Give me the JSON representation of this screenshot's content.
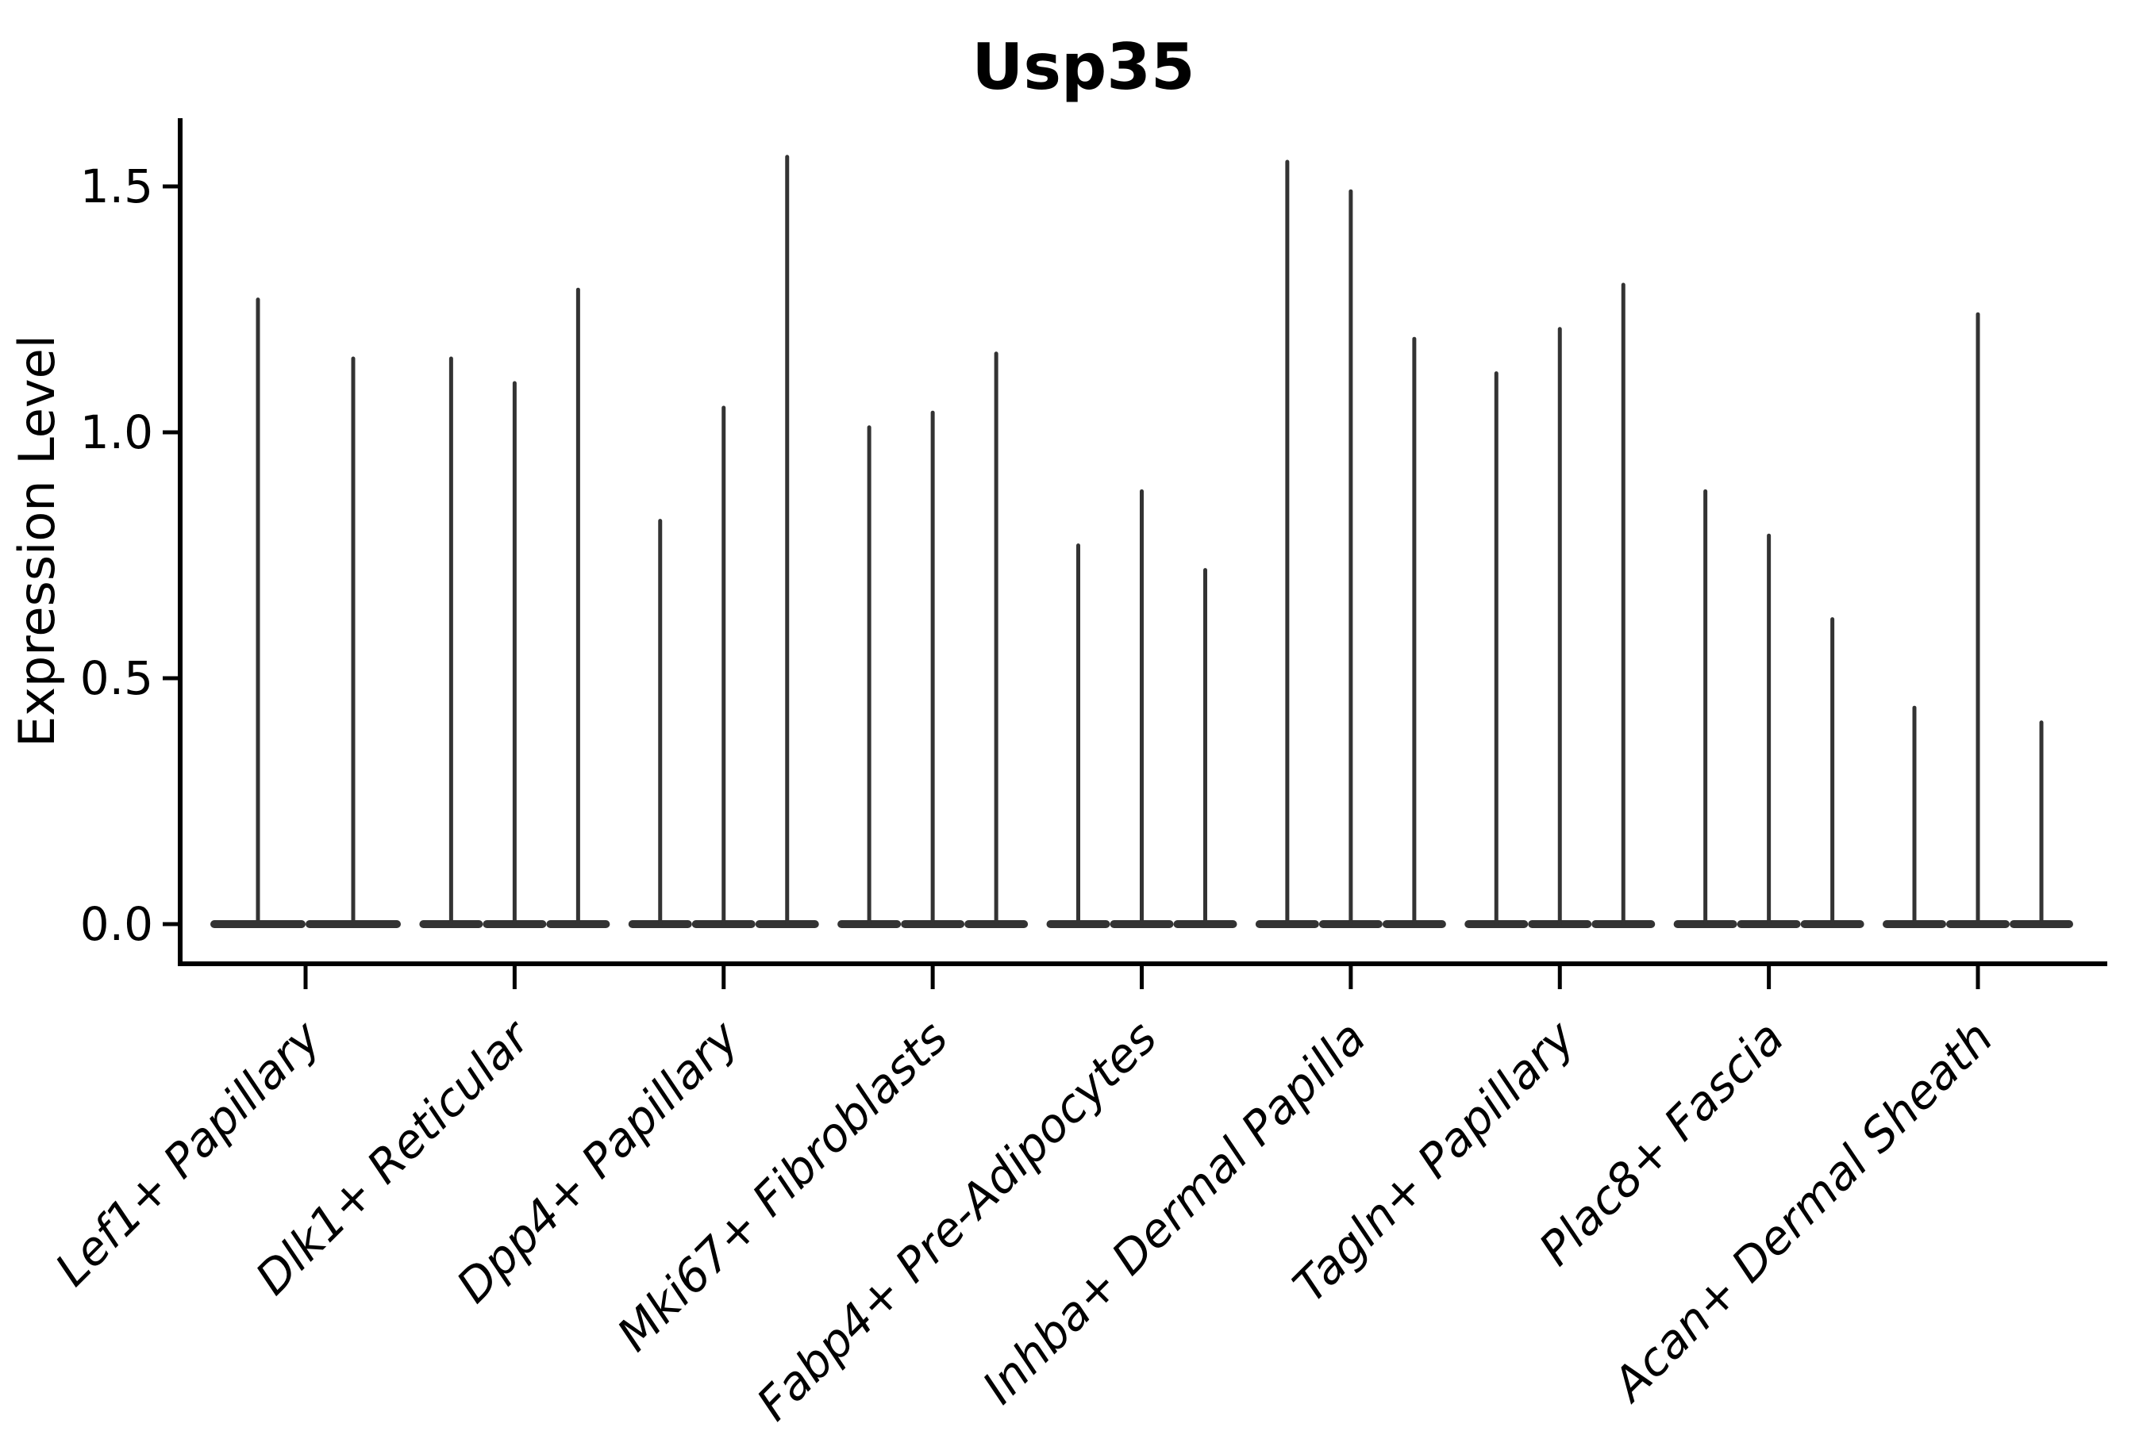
{
  "chart_data": {
    "type": "violin",
    "title": "Usp35",
    "xlabel": "",
    "ylabel": "Expression Level",
    "ylim": [
      0,
      1.64
    ],
    "yticks": [
      0.0,
      0.5,
      1.0,
      1.5
    ],
    "ytick_labels": [
      "0.0",
      "0.5",
      "1.0",
      "1.5"
    ],
    "grid": false,
    "legend": "none",
    "violin_color": "#333333",
    "axis_color": "#000000",
    "groups": [
      {
        "label": "Lef1+ Papillary",
        "violin_maxima": [
          1.27,
          1.15
        ]
      },
      {
        "label": "Dlk1+ Reticular",
        "violin_maxima": [
          1.15,
          1.1,
          1.29
        ]
      },
      {
        "label": "Dpp4+ Papillary",
        "violin_maxima": [
          0.82,
          1.05,
          1.56
        ]
      },
      {
        "label": "Mki67+ Fibroblasts",
        "violin_maxima": [
          1.01,
          1.04,
          1.16
        ]
      },
      {
        "label": "Fabp4+ Pre-Adipocytes",
        "violin_maxima": [
          0.77,
          0.88,
          0.72
        ]
      },
      {
        "label": "Inhba+ Dermal Papilla",
        "violin_maxima": [
          1.55,
          1.49,
          1.19
        ]
      },
      {
        "label": "Tagln+ Papillary",
        "violin_maxima": [
          1.12,
          1.21,
          1.3
        ]
      },
      {
        "label": "Plac8+ Fascia",
        "violin_maxima": [
          0.88,
          0.79,
          0.62
        ]
      },
      {
        "label": "Acan+ Dermal Sheath",
        "violin_maxima": [
          0.44,
          1.24,
          0.41
        ]
      }
    ]
  }
}
